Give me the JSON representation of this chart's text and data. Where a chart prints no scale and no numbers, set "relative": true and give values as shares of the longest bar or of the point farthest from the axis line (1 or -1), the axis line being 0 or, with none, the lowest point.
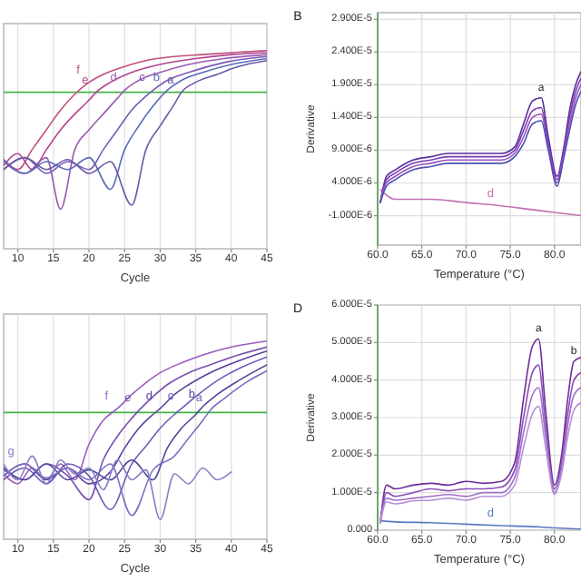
{
  "chart_data": [
    {
      "type": "line",
      "xlabel": "Cycle",
      "relative": true,
      "xlim": [
        8,
        45
      ],
      "xticks": [
        10,
        15,
        20,
        25,
        30,
        35,
        40,
        45
      ],
      "grid": "x",
      "ref_lines": [
        {
          "axis": "y",
          "value": 0.79,
          "color": "#44b444"
        }
      ],
      "series": [
        {
          "name": "f",
          "color": "#c0507a",
          "x": [
            8,
            10,
            12,
            14,
            16,
            18,
            20,
            22,
            25,
            28,
            32,
            36,
            40,
            45
          ],
          "values": [
            0.45,
            0.4,
            0.5,
            0.6,
            0.7,
            0.78,
            0.84,
            0.88,
            0.92,
            0.95,
            0.97,
            0.98,
            0.99,
            1.0
          ]
        },
        {
          "name": "e",
          "color": "#b04590",
          "x": [
            8,
            10,
            12,
            14,
            16,
            18,
            20,
            21,
            23,
            26,
            30,
            35,
            40,
            45
          ],
          "values": [
            0.42,
            0.48,
            0.4,
            0.5,
            0.6,
            0.68,
            0.75,
            0.79,
            0.84,
            0.89,
            0.93,
            0.96,
            0.98,
            0.99
          ]
        },
        {
          "name": "d",
          "color": "#9a5ab0",
          "x": [
            8,
            11,
            14,
            16,
            18,
            20,
            22,
            24,
            25,
            27,
            30,
            34,
            39,
            45
          ],
          "values": [
            0.44,
            0.38,
            0.46,
            0.2,
            0.5,
            0.6,
            0.68,
            0.76,
            0.8,
            0.85,
            0.89,
            0.93,
            0.96,
            0.98
          ]
        },
        {
          "name": "c",
          "color": "#7a5ab5",
          "x": [
            8,
            11,
            14,
            17,
            20,
            22,
            24,
            26,
            28,
            29,
            31,
            34,
            39,
            45
          ],
          "values": [
            0.4,
            0.46,
            0.38,
            0.44,
            0.4,
            0.5,
            0.6,
            0.7,
            0.77,
            0.8,
            0.85,
            0.89,
            0.94,
            0.97
          ]
        },
        {
          "name": "b",
          "color": "#5a6ab8",
          "x": [
            8,
            11,
            14,
            17,
            20,
            23,
            25,
            27,
            29,
            31,
            33,
            36,
            40,
            45
          ],
          "values": [
            0.45,
            0.38,
            0.44,
            0.4,
            0.46,
            0.3,
            0.5,
            0.62,
            0.72,
            0.8,
            0.85,
            0.89,
            0.93,
            0.96
          ]
        },
        {
          "name": "a",
          "color": "#6a5aa8",
          "x": [
            8,
            11,
            14,
            17,
            20,
            23,
            26,
            28,
            30,
            32,
            33,
            35,
            38,
            41,
            45
          ],
          "values": [
            0.4,
            0.46,
            0.4,
            0.45,
            0.38,
            0.44,
            0.22,
            0.5,
            0.62,
            0.73,
            0.79,
            0.84,
            0.88,
            0.92,
            0.95
          ]
        }
      ]
    },
    {
      "type": "line",
      "xlabel": "Temperature (°C)",
      "ylabel": "Derivative",
      "xlim": [
        60,
        83
      ],
      "ylim": [
        -5.5e-06,
        3e-05
      ],
      "xticks": [
        {
          "value": 60,
          "label": "60.0"
        },
        {
          "value": 65,
          "label": "65.0"
        },
        {
          "value": 70,
          "label": "70.0"
        },
        {
          "value": 75,
          "label": "75.0"
        },
        {
          "value": 80,
          "label": "80.0"
        }
      ],
      "yticks": [
        {
          "value": -1e-06,
          "label": "-1.000E-6"
        },
        {
          "value": 4e-06,
          "label": "4.000E-6"
        },
        {
          "value": 9e-06,
          "label": "9.000E-6"
        },
        {
          "value": 1.4e-05,
          "label": "1.400E-5"
        },
        {
          "value": 1.9e-05,
          "label": "1.900E-5"
        },
        {
          "value": 2.4e-05,
          "label": "2.400E-5"
        },
        {
          "value": 2.9e-05,
          "label": "2.900E-5"
        }
      ],
      "grid": true,
      "annotations": [
        "B",
        {
          "text": "a",
          "x": 78.5,
          "y": 1.7e-05
        }
      ],
      "series": [
        {
          "name": "d",
          "color": "#c070b0",
          "x": [
            60.3,
            62,
            66,
            70,
            74,
            77,
            80,
            83
          ],
          "values": [
            3e-06,
            1.5e-06,
            1.5e-06,
            1e-06,
            5e-07,
            0,
            -5e-07,
            -1e-06
          ]
        },
        {
          "color": "#5a2c9a",
          "x": [
            60.3,
            61,
            62,
            64,
            66,
            68,
            70,
            72,
            74,
            75.5,
            76.5,
            77.5,
            78.5,
            79.3,
            80.3,
            81,
            81.7,
            82.4,
            83
          ],
          "values": [
            1e-06,
            5e-06,
            6e-06,
            7.5e-06,
            8e-06,
            8.5e-06,
            8.5e-06,
            8.5e-06,
            8.5e-06,
            9.5e-06,
            1.3e-05,
            1.65e-05,
            1.7e-05,
            1.1e-05,
            5e-06,
            9e-06,
            1.5e-05,
            1.9e-05,
            2.1e-05
          ]
        },
        {
          "color": "#7a3cb0",
          "x": [
            60.3,
            61,
            62,
            64,
            66,
            68,
            70,
            72,
            74,
            75.5,
            76.5,
            77.5,
            78.5,
            79.3,
            80.3,
            81,
            81.7,
            82.4,
            83
          ],
          "values": [
            1e-06,
            4.5e-06,
            5.5e-06,
            7e-06,
            7.5e-06,
            8e-06,
            8e-06,
            8e-06,
            8e-06,
            9e-06,
            1.2e-05,
            1.5e-05,
            1.55e-05,
            1e-05,
            4.5e-06,
            8.5e-06,
            1.4e-05,
            1.8e-05,
            2e-05
          ]
        },
        {
          "color": "#9a50c0",
          "x": [
            60.3,
            61,
            62,
            64,
            66,
            68,
            70,
            72,
            74,
            75.5,
            76.5,
            77.5,
            78.5,
            79.3,
            80.3,
            81,
            81.7,
            82.4,
            83
          ],
          "values": [
            1e-06,
            4e-06,
            5e-06,
            6.5e-06,
            7e-06,
            7.5e-06,
            7.5e-06,
            7.5e-06,
            7.5e-06,
            8.5e-06,
            1.1e-05,
            1.4e-05,
            1.45e-05,
            9.5e-06,
            4e-06,
            8e-06,
            1.3e-05,
            1.7e-05,
            1.9e-05
          ]
        },
        {
          "color": "#4a50b0",
          "x": [
            60.3,
            61,
            62,
            64,
            66,
            68,
            70,
            72,
            74,
            75.5,
            76.5,
            77.5,
            78.5,
            79.3,
            80.3,
            81,
            81.7,
            82.4,
            83
          ],
          "values": [
            1e-06,
            3.5e-06,
            4.5e-06,
            6e-06,
            6.5e-06,
            7e-06,
            7e-06,
            7e-06,
            7e-06,
            8e-06,
            1e-05,
            1.3e-05,
            1.35e-05,
            9e-06,
            3.5e-06,
            7.5e-06,
            1.2e-05,
            1.6e-05,
            1.8e-05
          ]
        }
      ]
    },
    {
      "type": "line",
      "xlabel": "Cycle",
      "relative": true,
      "xlim": [
        8,
        45
      ],
      "xticks": [
        10,
        15,
        20,
        25,
        30,
        35,
        40,
        45
      ],
      "grid": "x",
      "ref_lines": [
        {
          "axis": "y",
          "value": 0.64,
          "color": "#44b444"
        }
      ],
      "series": [
        {
          "name": "f",
          "color": "#9a5cc0",
          "x": [
            8,
            10,
            12,
            14,
            16,
            18,
            20,
            22,
            24,
            26,
            28,
            30,
            33,
            36,
            40,
            45
          ],
          "values": [
            0.33,
            0.28,
            0.36,
            0.3,
            0.38,
            0.3,
            0.48,
            0.6,
            0.66,
            0.73,
            0.79,
            0.84,
            0.89,
            0.93,
            0.97,
            1.0
          ]
        },
        {
          "name": "e",
          "color": "#7a4fb0",
          "x": [
            8,
            11,
            14,
            17,
            20,
            22,
            24,
            26,
            27,
            29,
            31,
            34,
            37,
            41,
            45
          ],
          "values": [
            0.35,
            0.3,
            0.38,
            0.32,
            0.2,
            0.4,
            0.52,
            0.61,
            0.65,
            0.72,
            0.78,
            0.84,
            0.88,
            0.93,
            0.97
          ]
        },
        {
          "name": "d",
          "color": "#5a3f9e",
          "x": [
            8,
            11,
            14,
            17,
            20,
            23,
            25,
            27,
            29,
            30,
            32,
            34,
            37,
            41,
            45
          ],
          "values": [
            0.32,
            0.38,
            0.3,
            0.36,
            0.28,
            0.34,
            0.46,
            0.56,
            0.63,
            0.66,
            0.73,
            0.78,
            0.84,
            0.9,
            0.95
          ]
        },
        {
          "name": "c",
          "color": "#6b5bb8",
          "x": [
            8,
            11,
            14,
            17,
            20,
            23,
            26,
            28,
            30,
            32,
            33,
            35,
            38,
            41,
            45
          ],
          "values": [
            0.3,
            0.36,
            0.28,
            0.38,
            0.32,
            0.15,
            0.38,
            0.47,
            0.56,
            0.63,
            0.66,
            0.72,
            0.8,
            0.86,
            0.92
          ]
        },
        {
          "name": "b",
          "color": "#4a4a9a",
          "x": [
            8,
            11,
            14,
            17,
            20,
            23,
            26,
            29,
            31,
            33,
            35,
            36,
            38,
            41,
            45
          ],
          "values": [
            0.36,
            0.3,
            0.38,
            0.3,
            0.35,
            0.3,
            0.4,
            0.3,
            0.46,
            0.56,
            0.63,
            0.67,
            0.73,
            0.8,
            0.88
          ]
        },
        {
          "name": "a",
          "color": "#7a70c0",
          "x": [
            8,
            11,
            14,
            17,
            20,
            23,
            26,
            29,
            32,
            34,
            36,
            37,
            39,
            42,
            45
          ],
          "values": [
            0.32,
            0.38,
            0.31,
            0.36,
            0.3,
            0.38,
            0.12,
            0.35,
            0.42,
            0.51,
            0.6,
            0.65,
            0.71,
            0.79,
            0.85
          ]
        },
        {
          "name": "g",
          "color": "#8c7cc8",
          "x": [
            8,
            10,
            12,
            14,
            16,
            18,
            20,
            22,
            24,
            26,
            28,
            30,
            32,
            34,
            36,
            38,
            40
          ],
          "values": [
            0.38,
            0.3,
            0.42,
            0.28,
            0.4,
            0.33,
            0.36,
            0.25,
            0.4,
            0.3,
            0.35,
            0.1,
            0.33,
            0.28,
            0.36,
            0.3,
            0.34
          ]
        }
      ]
    },
    {
      "type": "line",
      "xlabel": "Temperature (°C)",
      "ylabel": "Derivative",
      "xlim": [
        60,
        83
      ],
      "ylim": [
        0,
        6e-05
      ],
      "xticks": [
        {
          "value": 60,
          "label": "60.0"
        },
        {
          "value": 65,
          "label": "65.0"
        },
        {
          "value": 70,
          "label": "70.0"
        },
        {
          "value": 75,
          "label": "75.0"
        },
        {
          "value": 80,
          "label": "80.0"
        }
      ],
      "yticks": [
        {
          "value": 0,
          "label": "0.000"
        },
        {
          "value": 1e-05,
          "label": "1.000E-5"
        },
        {
          "value": 2e-05,
          "label": "2.000E-5"
        },
        {
          "value": 3e-05,
          "label": "3.000E-5"
        },
        {
          "value": 4e-05,
          "label": "4.000E-5"
        },
        {
          "value": 5e-05,
          "label": "5.000E-5"
        },
        {
          "value": 6e-05,
          "label": "6.000E-5"
        }
      ],
      "grid": true,
      "annotations": [
        "D",
        {
          "text": "a",
          "x": 78.2,
          "y": 5.1e-05
        },
        {
          "text": "b",
          "x": 82.2,
          "y": 4.5e-05
        }
      ],
      "series": [
        {
          "name": "d",
          "color": "#5a78c0",
          "x": [
            60.3,
            62,
            66,
            70,
            74,
            77,
            80,
            83
          ],
          "values": [
            2.5e-06,
            2.2e-06,
            2e-06,
            1.6e-06,
            1.2e-06,
            1e-06,
            6e-07,
            3e-07
          ]
        },
        {
          "color": "#6a2c9a",
          "x": [
            60.3,
            61,
            62,
            64,
            66,
            68,
            70,
            72,
            74,
            75.5,
            76.5,
            77.5,
            78.2,
            79,
            80,
            80.8,
            81.5,
            82.2,
            83
          ],
          "values": [
            2e-06,
            1.2e-05,
            1.1e-05,
            1.2e-05,
            1.25e-05,
            1.2e-05,
            1.3e-05,
            1.25e-05,
            1.3e-05,
            1.8e-05,
            3.5e-05,
            4.9e-05,
            5.1e-05,
            3.2e-05,
            1.2e-05,
            2e-05,
            3.5e-05,
            4.5e-05,
            4.6e-05
          ]
        },
        {
          "color": "#8a4cb8",
          "x": [
            60.3,
            61,
            62,
            64,
            66,
            68,
            70,
            72,
            74,
            75.5,
            76.5,
            77.5,
            78.2,
            79,
            80,
            80.8,
            81.5,
            82.2,
            83
          ],
          "values": [
            2e-06,
            1e-05,
            9e-06,
            1e-05,
            1.1e-05,
            1.05e-05,
            1.1e-05,
            1.1e-05,
            1.15e-05,
            1.6e-05,
            3e-05,
            4.2e-05,
            4.4e-05,
            2.8e-05,
            1.1e-05,
            1.8e-05,
            3.1e-05,
            4e-05,
            4.2e-05
          ]
        },
        {
          "color": "#a070c8",
          "x": [
            60.3,
            61,
            62,
            64,
            66,
            68,
            70,
            72,
            74,
            75.5,
            76.5,
            77.5,
            78.2,
            79,
            80,
            80.8,
            81.5,
            82.2,
            83
          ],
          "values": [
            2e-06,
            8.5e-06,
            8e-06,
            8.5e-06,
            9e-06,
            9.5e-06,
            9e-06,
            1e-05,
            1e-05,
            1.4e-05,
            2.6e-05,
            3.6e-05,
            3.8e-05,
            2.5e-05,
            1e-05,
            1.6e-05,
            2.8e-05,
            3.6e-05,
            3.8e-05
          ]
        },
        {
          "color": "#b890d8",
          "x": [
            60.3,
            61,
            62,
            64,
            66,
            68,
            70,
            72,
            74,
            75.5,
            76.5,
            77.5,
            78.2,
            79,
            80,
            80.8,
            81.5,
            82.2,
            83
          ],
          "values": [
            2e-06,
            7.5e-06,
            7e-06,
            7.8e-06,
            8e-06,
            8.5e-06,
            8e-06,
            9e-06,
            9e-06,
            1.2e-05,
            2.2e-05,
            3.1e-05,
            3.3e-05,
            2.2e-05,
            9.5e-06,
            1.5e-05,
            2.5e-05,
            3.2e-05,
            3.4e-05
          ]
        }
      ]
    }
  ]
}
